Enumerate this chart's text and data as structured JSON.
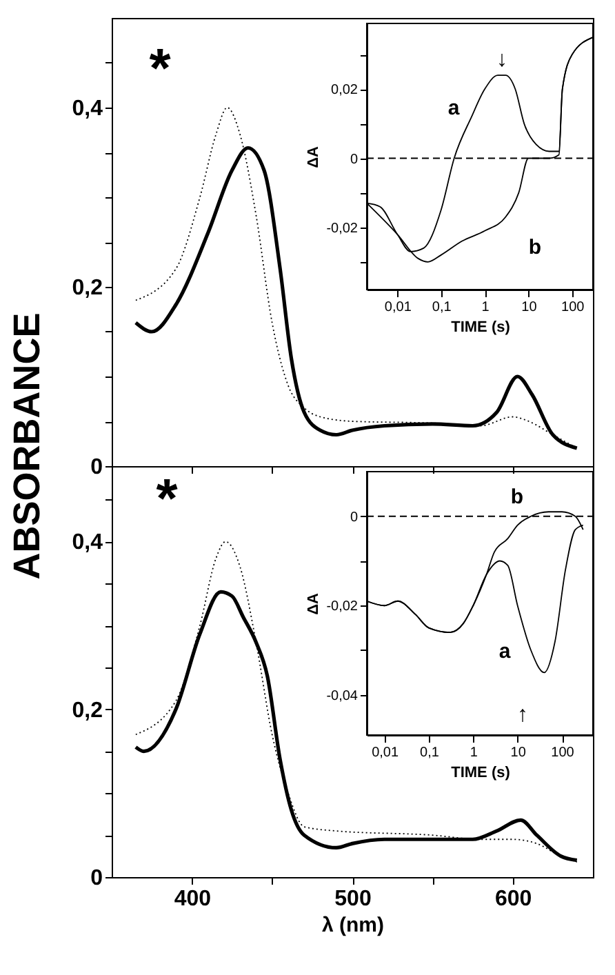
{
  "chart_data": [
    {
      "type": "line",
      "ylabel": "ABSORBANCE",
      "xlim": [
        350,
        650
      ],
      "ylim": [
        0,
        0.5
      ],
      "tick_labels": "y",
      "grid": false,
      "legend": false,
      "marker": "none",
      "xticks": [
        {
          "value": 400,
          "label": null
        },
        {
          "value": 450,
          "label": null
        },
        {
          "value": 500,
          "label": null
        },
        {
          "value": 550,
          "label": null
        },
        {
          "value": 600,
          "label": null
        }
      ],
      "yticks": [
        {
          "value": 0,
          "label": "0"
        },
        {
          "value": 0.05,
          "label": null
        },
        {
          "value": 0.1,
          "label": null
        },
        {
          "value": 0.15,
          "label": null
        },
        {
          "value": 0.2,
          "label": "0,2"
        },
        {
          "value": 0.25,
          "label": null
        },
        {
          "value": 0.3,
          "label": null
        },
        {
          "value": 0.35,
          "label": null
        },
        {
          "value": 0.4,
          "label": "0,4"
        },
        {
          "value": 0.45,
          "label": null
        }
      ],
      "series": [
        {
          "color": "#000000",
          "line_style": "dotted",
          "x": [
            365,
            390,
            405,
            415,
            422,
            430,
            440,
            450,
            460,
            470,
            480,
            500,
            550,
            580,
            600,
            610,
            625,
            640
          ],
          "values": [
            0.185,
            0.22,
            0.3,
            0.37,
            0.4,
            0.37,
            0.28,
            0.16,
            0.09,
            0.065,
            0.055,
            0.05,
            0.048,
            0.045,
            0.055,
            0.05,
            0.035,
            0.02
          ]
        },
        {
          "color": "#000000",
          "line_style": "solid",
          "x": [
            365,
            375,
            390,
            410,
            425,
            435,
            445,
            455,
            462,
            470,
            480,
            490,
            500,
            520,
            550,
            575,
            590,
            603,
            612,
            625,
            640
          ],
          "values": [
            0.16,
            0.15,
            0.18,
            0.26,
            0.33,
            0.355,
            0.33,
            0.22,
            0.12,
            0.06,
            0.04,
            0.035,
            0.04,
            0.045,
            0.047,
            0.045,
            0.06,
            0.1,
            0.08,
            0.035,
            0.02
          ]
        }
      ],
      "annotations": [
        "*"
      ]
    },
    {
      "type": "line",
      "xlabel": "TIME (s)",
      "ylabel": "ΔA",
      "log": "x",
      "xlim": [
        0.002,
        300
      ],
      "ylim": [
        -0.038,
        0.039
      ],
      "grid": false,
      "legend": false,
      "marker": "none",
      "xticks": [
        {
          "value": 0.01,
          "label": "0,01"
        },
        {
          "value": 0.1,
          "label": "0,1"
        },
        1,
        10,
        100
      ],
      "yticks": [
        {
          "value": -0.03,
          "label": null
        },
        {
          "value": -0.02,
          "label": "-0,02"
        },
        {
          "value": -0.01,
          "label": null
        },
        {
          "value": 0,
          "label": "0"
        },
        {
          "value": 0.01,
          "label": null
        },
        {
          "value": 0.02,
          "label": "0,02"
        },
        {
          "value": 0.03,
          "label": null
        }
      ],
      "ref_lines": [
        {
          "axis": "y",
          "value": 0,
          "line_style": "dashed"
        }
      ],
      "series": [
        {
          "name": "a",
          "color": "#000000",
          "line_style": "solid",
          "x": [
            0.002,
            0.004,
            0.01,
            0.02,
            0.04,
            0.1,
            0.2,
            0.5,
            1,
            2,
            3,
            5,
            8,
            15,
            30,
            50,
            60,
            100,
            300
          ],
          "values": [
            -0.013,
            -0.014,
            -0.022,
            -0.027,
            -0.026,
            -0.015,
            0.0,
            0.012,
            0.02,
            0.024,
            0.024,
            0.02,
            0.01,
            0.004,
            0.002,
            0.002,
            0.02,
            0.03,
            0.035
          ]
        },
        {
          "name": "b",
          "color": "#000000",
          "line_style": "solid",
          "x": [
            0.002,
            0.01,
            0.03,
            0.05,
            0.1,
            0.3,
            1,
            3,
            6,
            10,
            30,
            50,
            60,
            100,
            300
          ],
          "values": [
            -0.013,
            -0.022,
            -0.029,
            -0.03,
            -0.028,
            -0.024,
            -0.021,
            -0.017,
            -0.01,
            0.0,
            0.0,
            0.001,
            0.02,
            0.03,
            0.035
          ]
        }
      ],
      "annotations": [
        "↓"
      ]
    },
    {
      "type": "line",
      "xlabel": "λ (nm)",
      "xlim": [
        350,
        650
      ],
      "ylim": [
        0,
        0.49
      ],
      "grid": false,
      "legend": false,
      "marker": "none",
      "xticks": [
        400,
        {
          "value": 450,
          "label": null
        },
        500,
        {
          "value": 550,
          "label": null
        },
        600
      ],
      "yticks": [
        {
          "value": 0,
          "label": "0"
        },
        {
          "value": 0.05,
          "label": null
        },
        {
          "value": 0.1,
          "label": null
        },
        {
          "value": 0.15,
          "label": null
        },
        {
          "value": 0.2,
          "label": "0,2"
        },
        {
          "value": 0.25,
          "label": null
        },
        {
          "value": 0.3,
          "label": null
        },
        {
          "value": 0.35,
          "label": null
        },
        {
          "value": 0.4,
          "label": "0,4"
        },
        {
          "value": 0.45,
          "label": null
        }
      ],
      "series": [
        {
          "color": "#000000",
          "line_style": "dotted",
          "x": [
            365,
            390,
            405,
            415,
            421,
            430,
            440,
            450,
            460,
            470,
            490,
            550,
            580,
            600,
            615,
            630,
            640
          ],
          "values": [
            0.17,
            0.21,
            0.3,
            0.38,
            0.4,
            0.37,
            0.28,
            0.17,
            0.1,
            0.06,
            0.055,
            0.05,
            0.045,
            0.045,
            0.04,
            0.025,
            0.018
          ]
        },
        {
          "color": "#000000",
          "line_style": "solid",
          "x": [
            365,
            370,
            390,
            405,
            418,
            425,
            432,
            440,
            447,
            455,
            462,
            470,
            490,
            500,
            520,
            575,
            590,
            605,
            615,
            630,
            640
          ],
          "values": [
            0.155,
            0.15,
            0.2,
            0.29,
            0.34,
            0.335,
            0.31,
            0.28,
            0.24,
            0.14,
            0.08,
            0.05,
            0.035,
            0.04,
            0.045,
            0.045,
            0.055,
            0.068,
            0.05,
            0.025,
            0.02
          ]
        }
      ],
      "annotations": [
        "*"
      ]
    },
    {
      "type": "line",
      "xlabel": "TIME (s)",
      "ylabel": "ΔA",
      "log": "x",
      "xlim": [
        0.004,
        500
      ],
      "ylim": [
        -0.049,
        0.01
      ],
      "grid": false,
      "legend": false,
      "marker": "none",
      "xticks": [
        {
          "value": 0.01,
          "label": "0,01"
        },
        {
          "value": 0.1,
          "label": "0,1"
        },
        1,
        10,
        100
      ],
      "yticks": [
        {
          "value": -0.04,
          "label": "-0,04"
        },
        {
          "value": -0.03,
          "label": null
        },
        {
          "value": -0.02,
          "label": "-0,02"
        },
        {
          "value": -0.01,
          "label": null
        },
        {
          "value": 0,
          "label": "0"
        }
      ],
      "ref_lines": [
        {
          "axis": "y",
          "value": 0,
          "line_style": "dashed"
        }
      ],
      "series": [
        {
          "name": "a",
          "color": "#000000",
          "line_style": "solid",
          "x": [
            0.004,
            0.01,
            0.02,
            0.05,
            0.1,
            0.3,
            0.6,
            1,
            2,
            4,
            6,
            10,
            20,
            40,
            70,
            120,
            200,
            300
          ],
          "values": [
            -0.019,
            -0.02,
            -0.019,
            -0.022,
            -0.025,
            -0.026,
            -0.024,
            -0.02,
            -0.013,
            -0.01,
            -0.011,
            -0.02,
            -0.03,
            -0.035,
            -0.028,
            -0.012,
            -0.003,
            -0.002
          ]
        },
        {
          "name": "b",
          "color": "#000000",
          "line_style": "solid",
          "x": [
            0.004,
            0.01,
            0.02,
            0.05,
            0.1,
            0.3,
            0.6,
            1,
            2,
            3,
            6,
            10,
            20,
            50,
            100,
            200,
            300
          ],
          "values": [
            -0.019,
            -0.02,
            -0.019,
            -0.022,
            -0.025,
            -0.026,
            -0.024,
            -0.02,
            -0.013,
            -0.008,
            -0.005,
            -0.002,
            0.0,
            0.001,
            0.001,
            0.0,
            -0.003
          ]
        }
      ],
      "annotations": [
        "↑"
      ]
    }
  ]
}
